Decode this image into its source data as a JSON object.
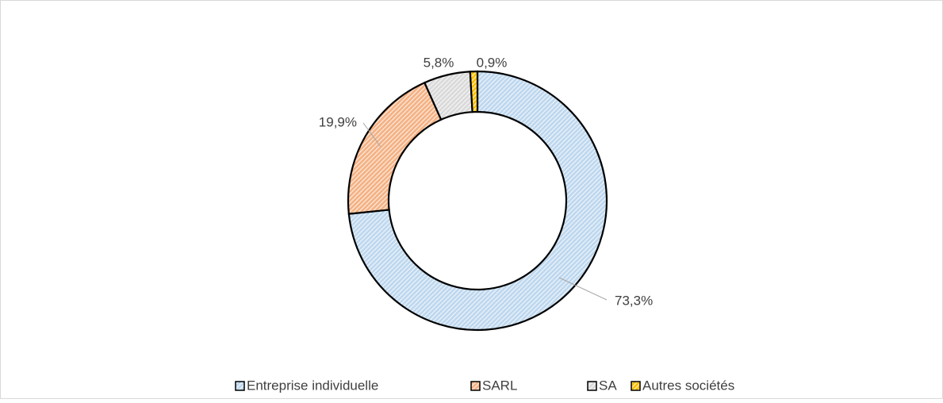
{
  "chart_data": {
    "type": "donut",
    "categories": [
      "Entreprise individuelle",
      "SARL",
      "SA",
      "Autres sociétés"
    ],
    "values": [
      73.3,
      19.9,
      5.8,
      0.9
    ],
    "value_labels": [
      "73,3%",
      "19,9%",
      "5,8%",
      "0,9%"
    ],
    "colors": [
      "#bdd7ee",
      "#f4b183",
      "#d9d9d9",
      "#ffc000"
    ],
    "legend": "bottom"
  }
}
